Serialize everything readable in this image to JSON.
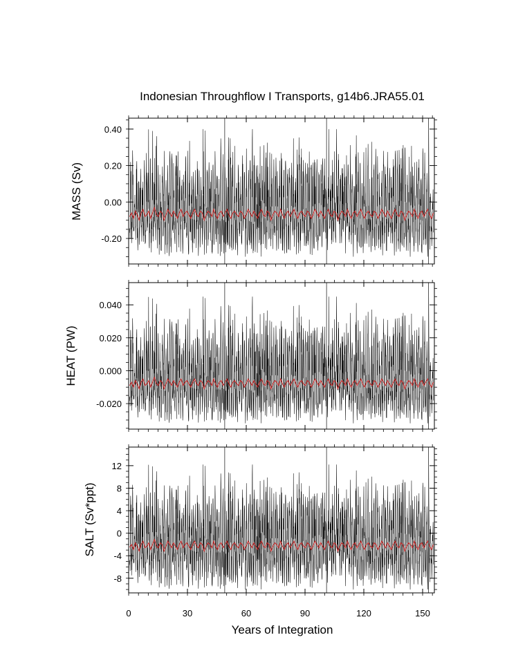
{
  "chart_data": {
    "type": "line",
    "title": "Indonesian Throughflow I Transports, g14b6.JRA55.01",
    "xlabel": "Years of Integration",
    "xlim": [
      0,
      156
    ],
    "x_ticks": [
      "0",
      "30",
      "60",
      "90",
      "120",
      "150"
    ],
    "x_tick_values": [
      0,
      30,
      60,
      90,
      120,
      150
    ],
    "cycle_marker_years": [
      49,
      101,
      153
    ],
    "colors": {
      "monthly": "#000000",
      "annual": "#cc2222",
      "markers": "#555555"
    },
    "panels": [
      {
        "name": "mass",
        "ylabel": "MASS (Sv)",
        "ylim": [
          -0.34,
          0.46
        ],
        "y_ticks": [
          "0.40",
          "0.20",
          "0.00",
          "-0.20"
        ],
        "y_tick_values": [
          0.4,
          0.2,
          0.0,
          -0.2
        ],
        "monthly_mean": -0.07,
        "monthly_range": [
          -0.3,
          0.4
        ],
        "annual_mean_range": [
          -0.12,
          -0.02
        ],
        "series": [
          {
            "name": "monthly",
            "style": "thin black line, strong annual cycle"
          },
          {
            "name": "annual",
            "style": "red line",
            "values": [
              -0.08,
              -0.06,
              -0.09,
              -0.05,
              -0.07,
              -0.1,
              -0.06,
              -0.04,
              -0.08,
              -0.07,
              -0.05,
              -0.09,
              -0.06,
              -0.03,
              -0.07,
              -0.08,
              -0.05,
              -0.06,
              -0.1,
              -0.07,
              -0.04,
              -0.06,
              -0.08,
              -0.05,
              -0.07,
              -0.09,
              -0.06,
              -0.04,
              -0.08,
              -0.06,
              -0.05,
              -0.07,
              -0.09,
              -0.06,
              -0.04,
              -0.07,
              -0.08,
              -0.05,
              -0.06,
              -0.1,
              -0.07,
              -0.05,
              -0.06,
              -0.08,
              -0.04,
              -0.07,
              -0.09,
              -0.06,
              -0.05,
              -0.08,
              -0.06,
              -0.04,
              -0.07,
              -0.09,
              -0.06,
              -0.05,
              -0.07,
              -0.08,
              -0.05,
              -0.06,
              -0.09,
              -0.07,
              -0.04,
              -0.06,
              -0.08,
              -0.05,
              -0.07,
              -0.09,
              -0.06,
              -0.04,
              -0.07,
              -0.08,
              -0.05,
              -0.06,
              -0.1,
              -0.07,
              -0.05,
              -0.06,
              -0.08,
              -0.04,
              -0.07,
              -0.09,
              -0.06,
              -0.05,
              -0.08,
              -0.06,
              -0.04,
              -0.07,
              -0.09,
              -0.06,
              -0.05,
              -0.07,
              -0.08,
              -0.05,
              -0.06,
              -0.09,
              -0.07,
              -0.04,
              -0.06,
              -0.08,
              -0.05,
              -0.07,
              -0.09,
              -0.06,
              -0.04,
              -0.07,
              -0.08,
              -0.05,
              -0.06,
              -0.1,
              -0.07,
              -0.05,
              -0.06,
              -0.08,
              -0.04,
              -0.07,
              -0.09,
              -0.06,
              -0.05,
              -0.08,
              -0.06,
              -0.04,
              -0.07,
              -0.09,
              -0.06,
              -0.05,
              -0.07,
              -0.08,
              -0.05,
              -0.06,
              -0.09,
              -0.07,
              -0.04,
              -0.06,
              -0.08,
              -0.05,
              -0.07,
              -0.09,
              -0.06,
              -0.04,
              -0.07,
              -0.08,
              -0.05,
              -0.06,
              -0.1,
              -0.07,
              -0.05,
              -0.06,
              -0.08,
              -0.04,
              -0.07,
              -0.09,
              -0.06,
              -0.05,
              -0.08,
              -0.06,
              -0.04,
              -0.07,
              -0.09,
              -0.06
            ]
          }
        ]
      },
      {
        "name": "heat",
        "ylabel": "HEAT (PW)",
        "ylim": [
          -0.0355,
          0.0535
        ],
        "y_ticks": [
          "0.040",
          "0.020",
          "0.000",
          "-0.020"
        ],
        "y_tick_values": [
          0.04,
          0.02,
          0.0,
          -0.02
        ],
        "monthly_mean": -0.008,
        "monthly_range": [
          -0.032,
          0.045
        ],
        "annual_mean_range": [
          -0.012,
          -0.003
        ],
        "series": [
          {
            "name": "monthly",
            "style": "thin black line, strong annual cycle"
          },
          {
            "name": "annual",
            "style": "red line",
            "values": [
              -0.009,
              -0.007,
              -0.01,
              -0.006,
              -0.008,
              -0.011,
              -0.007,
              -0.005,
              -0.009,
              -0.008,
              -0.006,
              -0.01,
              -0.007,
              -0.004,
              -0.008,
              -0.009,
              -0.006,
              -0.007,
              -0.011,
              -0.008,
              -0.005,
              -0.007,
              -0.009,
              -0.006,
              -0.008,
              -0.01,
              -0.007,
              -0.005,
              -0.009,
              -0.007,
              -0.006,
              -0.008,
              -0.01,
              -0.007,
              -0.005,
              -0.008,
              -0.009,
              -0.006,
              -0.007,
              -0.011,
              -0.008,
              -0.006,
              -0.007,
              -0.009,
              -0.005,
              -0.008,
              -0.01,
              -0.007,
              -0.006,
              -0.009,
              -0.007,
              -0.005,
              -0.008,
              -0.01,
              -0.007,
              -0.006,
              -0.008,
              -0.009,
              -0.006,
              -0.007,
              -0.01,
              -0.008,
              -0.005,
              -0.007,
              -0.009,
              -0.006,
              -0.008,
              -0.01,
              -0.007,
              -0.005,
              -0.008,
              -0.009,
              -0.006,
              -0.007,
              -0.011,
              -0.008,
              -0.006,
              -0.007,
              -0.009,
              -0.005,
              -0.008,
              -0.01,
              -0.007,
              -0.006,
              -0.009,
              -0.007,
              -0.005,
              -0.008,
              -0.01,
              -0.007,
              -0.006,
              -0.008,
              -0.009,
              -0.006,
              -0.007,
              -0.01,
              -0.008,
              -0.005,
              -0.007,
              -0.009,
              -0.006,
              -0.008,
              -0.01,
              -0.007,
              -0.005,
              -0.008,
              -0.009,
              -0.006,
              -0.007,
              -0.011,
              -0.008,
              -0.006,
              -0.007,
              -0.009,
              -0.005,
              -0.008,
              -0.01,
              -0.007,
              -0.006,
              -0.009,
              -0.007,
              -0.005,
              -0.008,
              -0.01,
              -0.007,
              -0.006,
              -0.008,
              -0.009,
              -0.006,
              -0.007,
              -0.01,
              -0.008,
              -0.005,
              -0.007,
              -0.009,
              -0.006,
              -0.008,
              -0.01,
              -0.007,
              -0.005,
              -0.008,
              -0.009,
              -0.006,
              -0.007,
              -0.011,
              -0.008,
              -0.006,
              -0.007,
              -0.009,
              -0.005,
              -0.008,
              -0.01,
              -0.007,
              -0.006,
              -0.009,
              -0.007,
              -0.005,
              -0.008,
              -0.01,
              -0.007
            ]
          }
        ]
      },
      {
        "name": "salt",
        "ylabel": "SALT (Sv*ppt)",
        "ylim": [
          -10.6,
          15.3
        ],
        "y_ticks": [
          "12",
          "8",
          "4",
          "0",
          "-4",
          "-8"
        ],
        "y_tick_values": [
          12,
          8,
          4,
          0,
          -4,
          -8
        ],
        "monthly_mean": -2.3,
        "monthly_range": [
          -10.0,
          12.2
        ],
        "annual_mean_range": [
          -3.8,
          -0.8
        ],
        "series": [
          {
            "name": "monthly",
            "style": "thin black line, strong annual cycle"
          },
          {
            "name": "annual",
            "style": "red line",
            "values": [
              -2.5,
              -2.0,
              -2.9,
              -1.7,
              -2.3,
              -3.2,
              -2.0,
              -1.4,
              -2.6,
              -2.3,
              -1.7,
              -2.9,
              -2.0,
              -1.1,
              -2.3,
              -2.6,
              -1.7,
              -2.0,
              -3.2,
              -2.3,
              -1.4,
              -2.0,
              -2.6,
              -1.7,
              -2.3,
              -2.9,
              -2.0,
              -1.4,
              -2.6,
              -2.0,
              -1.7,
              -2.3,
              -2.9,
              -2.0,
              -1.4,
              -2.3,
              -2.6,
              -1.7,
              -2.0,
              -3.2,
              -2.3,
              -1.7,
              -2.0,
              -2.6,
              -1.4,
              -2.3,
              -2.9,
              -2.0,
              -1.7,
              -2.6,
              -2.0,
              -1.4,
              -2.3,
              -2.9,
              -2.0,
              -1.7,
              -2.3,
              -2.6,
              -1.7,
              -2.0,
              -2.9,
              -2.3,
              -1.4,
              -2.0,
              -2.6,
              -1.7,
              -2.3,
              -2.9,
              -2.0,
              -1.4,
              -2.3,
              -2.6,
              -1.7,
              -2.0,
              -3.2,
              -2.3,
              -1.7,
              -2.0,
              -2.6,
              -1.4,
              -2.3,
              -2.9,
              -2.0,
              -1.7,
              -2.6,
              -2.0,
              -1.4,
              -2.3,
              -2.9,
              -2.0,
              -1.7,
              -2.3,
              -2.6,
              -1.7,
              -2.0,
              -2.9,
              -2.3,
              -1.4,
              -2.0,
              -2.6,
              -1.7,
              -2.3,
              -2.9,
              -2.0,
              -1.4,
              -2.3,
              -2.6,
              -1.7,
              -2.0,
              -3.2,
              -2.3,
              -1.7,
              -2.0,
              -2.6,
              -1.4,
              -2.3,
              -2.9,
              -2.0,
              -1.7,
              -2.6,
              -2.0,
              -1.4,
              -2.3,
              -2.9,
              -2.0,
              -1.7,
              -2.3,
              -2.6,
              -1.7,
              -2.0,
              -2.9,
              -2.3,
              -1.4,
              -2.0,
              -2.6,
              -1.7,
              -2.3,
              -2.9,
              -2.0,
              -1.4,
              -2.3,
              -2.6,
              -1.7,
              -2.0,
              -3.2,
              -2.3,
              -1.7,
              -2.0,
              -2.6,
              -1.4,
              -2.3,
              -2.9,
              -2.0,
              -1.7,
              -2.6,
              -2.0,
              -1.4,
              -2.3,
              -2.9,
              -2.0
            ]
          }
        ]
      }
    ]
  }
}
